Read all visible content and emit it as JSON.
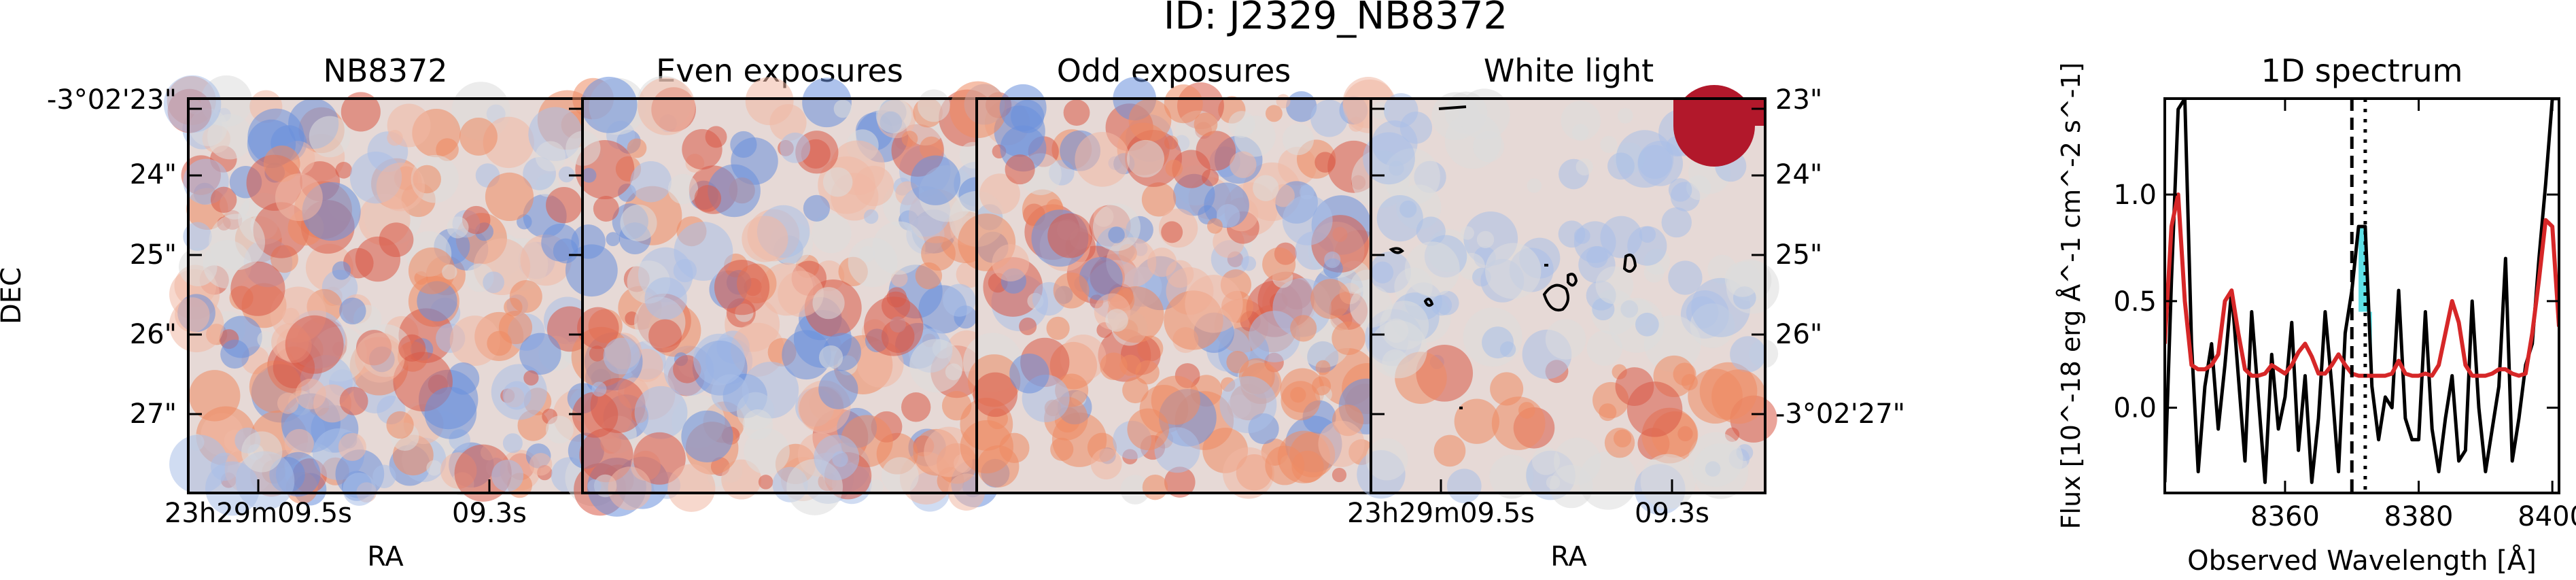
{
  "suptitle": "ID: J2329_NB8372",
  "colors": {
    "hot": "#b2182b",
    "warm": "#ef8a62",
    "neutral": "#dcdcdc",
    "cool": "#6a8fdc",
    "spectrum_red": "#d62728",
    "highlight": "#5ee0e6",
    "contour": "#000000"
  },
  "panels": [
    {
      "title": "NB8372"
    },
    {
      "title": "Even exposures"
    },
    {
      "title": "Odd exposures"
    },
    {
      "title": "White light"
    }
  ],
  "images": {
    "dec_label": "DEC",
    "ra_label": "RA",
    "dec_ticks": [
      "-3°02'23\"",
      "24\"",
      "25\"",
      "26\"",
      "27\""
    ],
    "ra_ticks_left": [
      "23h29m09.5s",
      "09.3s"
    ],
    "white_light_dec_ticks": [
      "23\"",
      "24\"",
      "25\"",
      "26\"",
      "-3°02'27\""
    ],
    "white_light_ra_ticks": [
      "23h29m09.5s",
      "09.3s"
    ]
  },
  "chart_data": {
    "type": "line",
    "title": "1D spectrum",
    "xlabel": "Observed Wavelength [Å]",
    "ylabel": "Flux [10^-18 erg Å^-1 cm^-2 s^-1]",
    "xlim": [
      8342,
      8401
    ],
    "ylim": [
      -0.4,
      1.45
    ],
    "xticks": [
      8360,
      8380,
      8400
    ],
    "yticks": [
      0.0,
      0.5,
      1.0
    ],
    "vline_dashed": 8370,
    "vline_dotted": 8372,
    "highlight_range": [
      8371.5,
      8372.5
    ],
    "series": [
      {
        "color": "#000000",
        "x": [
          8342,
          8343,
          8344,
          8345,
          8346,
          8347,
          8348,
          8349,
          8350,
          8351,
          8352,
          8353,
          8354,
          8355,
          8356,
          8357,
          8358,
          8359,
          8360,
          8361,
          8362,
          8363,
          8364,
          8365,
          8366,
          8367,
          8368,
          8369,
          8370,
          8371,
          8372,
          8373,
          8374,
          8375,
          8376,
          8377,
          8378,
          8379,
          8380,
          8381,
          8382,
          8383,
          8384,
          8385,
          8386,
          8387,
          8388,
          8389,
          8390,
          8391,
          8392,
          8393,
          8394,
          8395,
          8396,
          8397,
          8398,
          8399,
          8400,
          8401
        ],
        "y": [
          -0.35,
          0.6,
          1.4,
          1.45,
          0.3,
          -0.3,
          0.1,
          0.3,
          -0.1,
          0.2,
          0.55,
          0.15,
          -0.25,
          0.45,
          0.05,
          -0.35,
          0.25,
          -0.1,
          0.05,
          0.4,
          -0.2,
          0.15,
          -0.35,
          -0.05,
          0.45,
          0.1,
          -0.3,
          0.35,
          0.55,
          0.85,
          0.85,
          0.1,
          -0.15,
          0.05,
          0.0,
          0.55,
          -0.05,
          -0.15,
          -0.15,
          0.45,
          -0.1,
          -0.3,
          -0.05,
          0.15,
          -0.25,
          -0.2,
          0.5,
          0.0,
          -0.3,
          -0.1,
          0.1,
          0.7,
          -0.25,
          -0.05,
          0.2,
          0.3,
          0.7,
          1.05,
          1.45,
          1.45
        ]
      },
      {
        "color": "#d62728",
        "x": [
          8342,
          8343,
          8344,
          8345,
          8346,
          8347,
          8348,
          8349,
          8350,
          8351,
          8352,
          8353,
          8354,
          8355,
          8356,
          8357,
          8358,
          8359,
          8360,
          8361,
          8362,
          8363,
          8364,
          8365,
          8366,
          8367,
          8368,
          8369,
          8370,
          8371,
          8372,
          8373,
          8374,
          8375,
          8376,
          8377,
          8378,
          8379,
          8380,
          8381,
          8382,
          8383,
          8384,
          8385,
          8386,
          8387,
          8388,
          8389,
          8390,
          8391,
          8392,
          8393,
          8394,
          8395,
          8396,
          8397,
          8398,
          8399,
          8400,
          8401
        ],
        "y": [
          0.3,
          0.85,
          1.0,
          0.5,
          0.2,
          0.18,
          0.18,
          0.2,
          0.25,
          0.5,
          0.55,
          0.35,
          0.18,
          0.15,
          0.15,
          0.16,
          0.2,
          0.18,
          0.16,
          0.2,
          0.26,
          0.3,
          0.24,
          0.16,
          0.16,
          0.2,
          0.25,
          0.2,
          0.16,
          0.15,
          0.15,
          0.15,
          0.15,
          0.15,
          0.16,
          0.22,
          0.16,
          0.15,
          0.15,
          0.16,
          0.15,
          0.2,
          0.35,
          0.5,
          0.4,
          0.2,
          0.15,
          0.15,
          0.15,
          0.16,
          0.18,
          0.18,
          0.16,
          0.15,
          0.16,
          0.35,
          0.6,
          0.88,
          0.85,
          0.38
        ]
      }
    ]
  }
}
